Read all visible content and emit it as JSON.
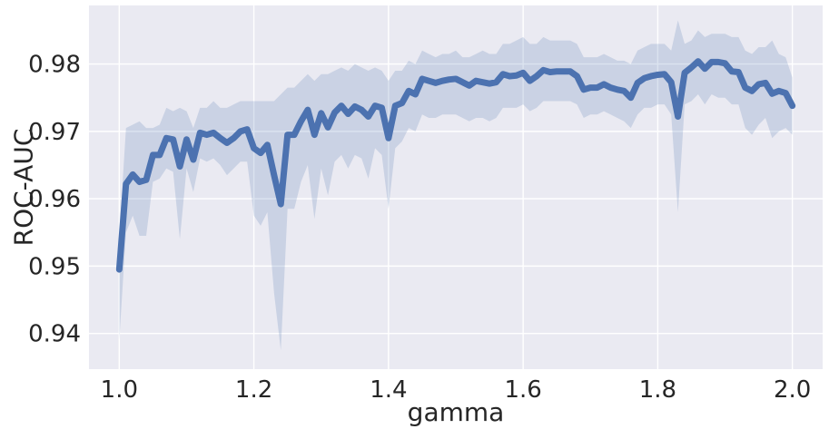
{
  "chart_data": {
    "type": "line",
    "title": "",
    "xlabel": "gamma",
    "ylabel": "ROC-AUC",
    "xlim": [
      0.955,
      2.045
    ],
    "ylim": [
      0.9347,
      0.9887
    ],
    "xticks": [
      1.0,
      1.2,
      1.4,
      1.6,
      1.8,
      2.0
    ],
    "xtick_labels": [
      "1.0",
      "1.2",
      "1.4",
      "1.6",
      "1.8",
      "2.0"
    ],
    "yticks": [
      0.94,
      0.95,
      0.96,
      0.97,
      0.98
    ],
    "ytick_labels": [
      "0.94",
      "0.95",
      "0.96",
      "0.97",
      "0.98"
    ],
    "grid": true,
    "colors": {
      "background": "#eaeaf2",
      "grid": "#ffffff",
      "line": "#4c72b0",
      "band": "#4c72b0",
      "text": "#262626"
    },
    "series": [
      {
        "x": [
          1.0,
          1.01,
          1.02,
          1.03,
          1.04,
          1.05,
          1.06,
          1.07,
          1.08,
          1.09,
          1.1,
          1.11,
          1.12,
          1.13,
          1.14,
          1.15,
          1.16,
          1.17,
          1.18,
          1.19,
          1.2,
          1.21,
          1.22,
          1.23,
          1.24,
          1.25,
          1.26,
          1.27,
          1.28,
          1.29,
          1.3,
          1.31,
          1.32,
          1.33,
          1.34,
          1.35,
          1.36,
          1.37,
          1.38,
          1.39,
          1.4,
          1.41,
          1.42,
          1.43,
          1.44,
          1.45,
          1.46,
          1.47,
          1.48,
          1.49,
          1.5,
          1.51,
          1.52,
          1.53,
          1.54,
          1.55,
          1.56,
          1.57,
          1.58,
          1.59,
          1.6,
          1.61,
          1.62,
          1.63,
          1.64,
          1.65,
          1.66,
          1.67,
          1.68,
          1.69,
          1.7,
          1.71,
          1.72,
          1.73,
          1.74,
          1.75,
          1.76,
          1.77,
          1.78,
          1.79,
          1.8,
          1.81,
          1.82,
          1.83,
          1.84,
          1.85,
          1.86,
          1.87,
          1.88,
          1.89,
          1.9,
          1.91,
          1.92,
          1.93,
          1.94,
          1.95,
          1.96,
          1.97,
          1.98,
          1.99,
          2.0
        ],
        "y": [
          0.9495,
          0.9622,
          0.9636,
          0.9625,
          0.9628,
          0.9665,
          0.9665,
          0.969,
          0.9688,
          0.9648,
          0.9688,
          0.9658,
          0.9698,
          0.9695,
          0.9698,
          0.969,
          0.9683,
          0.969,
          0.97,
          0.9703,
          0.9675,
          0.9668,
          0.968,
          0.9635,
          0.9592,
          0.9695,
          0.9695,
          0.9715,
          0.9732,
          0.9695,
          0.9727,
          0.9706,
          0.9728,
          0.9738,
          0.9726,
          0.9737,
          0.9732,
          0.9722,
          0.9738,
          0.9735,
          0.969,
          0.9738,
          0.9742,
          0.976,
          0.9755,
          0.9778,
          0.9775,
          0.9772,
          0.9775,
          0.9777,
          0.9778,
          0.9773,
          0.9768,
          0.9775,
          0.9773,
          0.9771,
          0.9773,
          0.9785,
          0.9782,
          0.9783,
          0.9787,
          0.9775,
          0.9782,
          0.9791,
          0.9788,
          0.9789,
          0.9789,
          0.9789,
          0.9782,
          0.9762,
          0.9765,
          0.9765,
          0.977,
          0.9765,
          0.9762,
          0.976,
          0.975,
          0.9772,
          0.9779,
          0.9782,
          0.9784,
          0.9785,
          0.9773,
          0.9722,
          0.9787,
          0.9795,
          0.9804,
          0.9793,
          0.9803,
          0.9803,
          0.9801,
          0.9789,
          0.9788,
          0.9765,
          0.976,
          0.977,
          0.9772,
          0.9756,
          0.976,
          0.9757,
          0.9738
        ],
        "lower": [
          0.939,
          0.955,
          0.9575,
          0.9545,
          0.9545,
          0.9625,
          0.963,
          0.9645,
          0.964,
          0.954,
          0.9645,
          0.961,
          0.966,
          0.9655,
          0.966,
          0.965,
          0.9635,
          0.9645,
          0.9655,
          0.9655,
          0.9575,
          0.956,
          0.958,
          0.946,
          0.9375,
          0.9585,
          0.9585,
          0.9625,
          0.965,
          0.957,
          0.9645,
          0.9605,
          0.9655,
          0.9665,
          0.9645,
          0.9665,
          0.966,
          0.963,
          0.9675,
          0.9665,
          0.9585,
          0.9675,
          0.9685,
          0.9705,
          0.97,
          0.9725,
          0.972,
          0.972,
          0.9725,
          0.9725,
          0.9725,
          0.972,
          0.9715,
          0.972,
          0.972,
          0.9715,
          0.972,
          0.9735,
          0.9735,
          0.9735,
          0.974,
          0.973,
          0.9735,
          0.9745,
          0.9745,
          0.9745,
          0.9745,
          0.9745,
          0.974,
          0.972,
          0.9725,
          0.9725,
          0.973,
          0.9725,
          0.972,
          0.9715,
          0.9705,
          0.9725,
          0.9735,
          0.9735,
          0.974,
          0.974,
          0.9725,
          0.958,
          0.974,
          0.9745,
          0.9755,
          0.974,
          0.9755,
          0.975,
          0.975,
          0.974,
          0.974,
          0.9705,
          0.9695,
          0.971,
          0.972,
          0.969,
          0.97,
          0.9705,
          0.9695
        ],
        "upper": [
          0.9545,
          0.9705,
          0.971,
          0.9715,
          0.9705,
          0.9705,
          0.971,
          0.9735,
          0.973,
          0.9735,
          0.973,
          0.9705,
          0.9735,
          0.9735,
          0.9745,
          0.9735,
          0.9735,
          0.974,
          0.9745,
          0.9745,
          0.9745,
          0.9745,
          0.9745,
          0.9745,
          0.9755,
          0.9765,
          0.9765,
          0.9775,
          0.9785,
          0.9775,
          0.9785,
          0.9785,
          0.979,
          0.9795,
          0.979,
          0.98,
          0.9795,
          0.979,
          0.9795,
          0.979,
          0.9775,
          0.979,
          0.979,
          0.9805,
          0.98,
          0.982,
          0.9815,
          0.981,
          0.9815,
          0.9815,
          0.982,
          0.981,
          0.981,
          0.9815,
          0.982,
          0.9815,
          0.9815,
          0.983,
          0.983,
          0.9835,
          0.984,
          0.983,
          0.983,
          0.984,
          0.9835,
          0.9835,
          0.9835,
          0.9835,
          0.983,
          0.981,
          0.981,
          0.981,
          0.9815,
          0.981,
          0.9805,
          0.9805,
          0.98,
          0.982,
          0.9825,
          0.983,
          0.983,
          0.983,
          0.982,
          0.9865,
          0.983,
          0.9835,
          0.985,
          0.984,
          0.9845,
          0.9845,
          0.9845,
          0.984,
          0.984,
          0.982,
          0.9815,
          0.9825,
          0.9825,
          0.9835,
          0.9815,
          0.981,
          0.978
        ]
      }
    ]
  }
}
